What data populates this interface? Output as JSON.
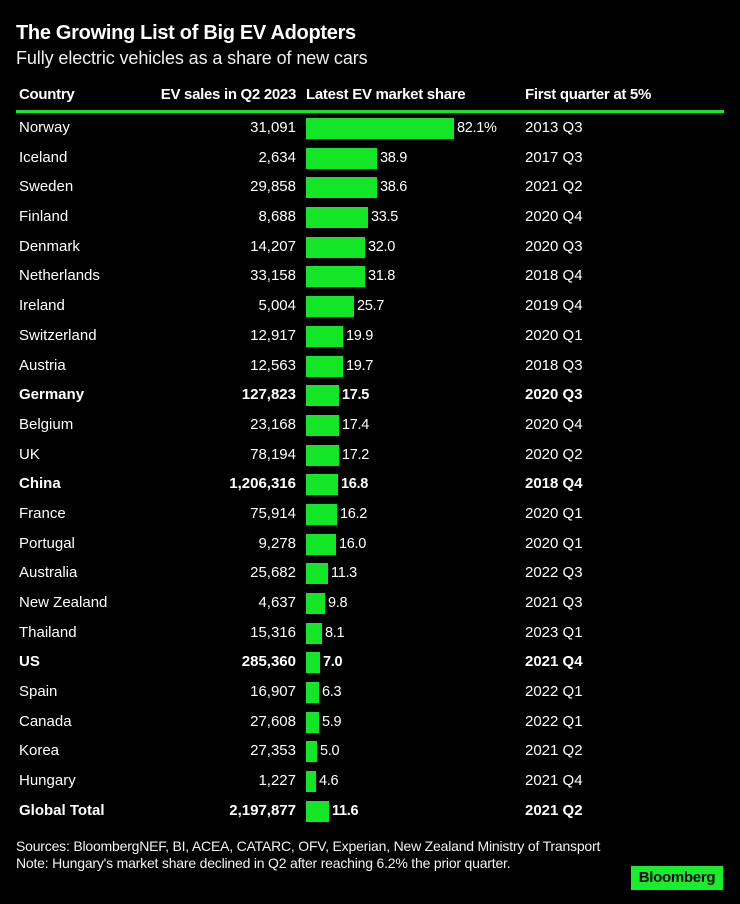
{
  "title": "The Growing List of Big EV Adopters",
  "subtitle": "Fully electric vehicles as a share of new cars",
  "columns": {
    "country": "Country",
    "sales": "EV sales in Q2 2023",
    "share": "Latest EV market share",
    "first": "First quarter at 5%"
  },
  "colors": {
    "accent": "#13e626",
    "background": "#000000",
    "text": "#ffffff"
  },
  "rows": [
    {
      "country": "Norway",
      "sales": "31,091",
      "share": 82.1,
      "share_label": "82.1%",
      "first": "2013 Q3",
      "bold": false
    },
    {
      "country": "Iceland",
      "sales": "2,634",
      "share": 38.9,
      "share_label": "38.9",
      "first": "2017 Q3",
      "bold": false
    },
    {
      "country": "Sweden",
      "sales": "29,858",
      "share": 38.6,
      "share_label": "38.6",
      "first": "2021 Q2",
      "bold": false
    },
    {
      "country": "Finland",
      "sales": "8,688",
      "share": 33.5,
      "share_label": "33.5",
      "first": "2020 Q4",
      "bold": false
    },
    {
      "country": "Denmark",
      "sales": "14,207",
      "share": 32.0,
      "share_label": "32.0",
      "first": "2020 Q3",
      "bold": false
    },
    {
      "country": "Netherlands",
      "sales": "33,158",
      "share": 31.8,
      "share_label": "31.8",
      "first": "2018 Q4",
      "bold": false
    },
    {
      "country": "Ireland",
      "sales": "5,004",
      "share": 25.7,
      "share_label": "25.7",
      "first": "2019 Q4",
      "bold": false
    },
    {
      "country": "Switzerland",
      "sales": "12,917",
      "share": 19.9,
      "share_label": "19.9",
      "first": "2020 Q1",
      "bold": false
    },
    {
      "country": "Austria",
      "sales": "12,563",
      "share": 19.7,
      "share_label": "19.7",
      "first": "2018 Q3",
      "bold": false
    },
    {
      "country": "Germany",
      "sales": "127,823",
      "share": 17.5,
      "share_label": "17.5",
      "first": "2020 Q3",
      "bold": true
    },
    {
      "country": "Belgium",
      "sales": "23,168",
      "share": 17.4,
      "share_label": "17.4",
      "first": "2020 Q4",
      "bold": false
    },
    {
      "country": "UK",
      "sales": "78,194",
      "share": 17.2,
      "share_label": "17.2",
      "first": "2020 Q2",
      "bold": false
    },
    {
      "country": "China",
      "sales": "1,206,316",
      "share": 16.8,
      "share_label": "16.8",
      "first": "2018 Q4",
      "bold": true
    },
    {
      "country": "France",
      "sales": "75,914",
      "share": 16.2,
      "share_label": "16.2",
      "first": "2020 Q1",
      "bold": false
    },
    {
      "country": "Portugal",
      "sales": "9,278",
      "share": 16.0,
      "share_label": "16.0",
      "first": "2020 Q1",
      "bold": false
    },
    {
      "country": "Australia",
      "sales": "25,682",
      "share": 11.3,
      "share_label": "11.3",
      "first": "2022 Q3",
      "bold": false
    },
    {
      "country": "New Zealand",
      "sales": "4,637",
      "share": 9.8,
      "share_label": "9.8",
      "first": "2021 Q3",
      "bold": false
    },
    {
      "country": "Thailand",
      "sales": "15,316",
      "share": 8.1,
      "share_label": "8.1",
      "first": "2023 Q1",
      "bold": false
    },
    {
      "country": "US",
      "sales": "285,360",
      "share": 7.0,
      "share_label": "7.0",
      "first": "2021 Q4",
      "bold": true
    },
    {
      "country": "Spain",
      "sales": "16,907",
      "share": 6.3,
      "share_label": "6.3",
      "first": "2022 Q1",
      "bold": false
    },
    {
      "country": "Canada",
      "sales": "27,608",
      "share": 5.9,
      "share_label": "5.9",
      "first": "2022 Q1",
      "bold": false
    },
    {
      "country": "Korea",
      "sales": "27,353",
      "share": 5.0,
      "share_label": "5.0",
      "first": "2021 Q2",
      "bold": false
    },
    {
      "country": "Hungary",
      "sales": "1,227",
      "share": 4.6,
      "share_label": "4.6",
      "first": "2021 Q4",
      "bold": false
    },
    {
      "country": "Global Total",
      "sales": "2,197,877",
      "share": 11.6,
      "share_label": "11.6",
      "first": "2021 Q2",
      "bold": true
    }
  ],
  "footer": {
    "sources": "Sources: BloombergNEF, BI, ACEA, CATARC, OFV, Experian, New Zealand Ministry of Transport",
    "note": "Note: Hungary's market share declined in Q2 after reaching 6.2% the prior quarter."
  },
  "brand": "Bloomberg",
  "chart_data": {
    "type": "table",
    "title": "The Growing List of Big EV Adopters",
    "subtitle": "Fully electric vehicles as a share of new cars",
    "columns": [
      "Country",
      "EV sales in Q2 2023",
      "Latest EV market share",
      "First quarter at 5%"
    ],
    "categories": [
      "Norway",
      "Iceland",
      "Sweden",
      "Finland",
      "Denmark",
      "Netherlands",
      "Ireland",
      "Switzerland",
      "Austria",
      "Germany",
      "Belgium",
      "UK",
      "China",
      "France",
      "Portugal",
      "Australia",
      "New Zealand",
      "Thailand",
      "US",
      "Spain",
      "Canada",
      "Korea",
      "Hungary",
      "Global Total"
    ],
    "series": [
      {
        "name": "EV sales in Q2 2023",
        "values": [
          31091,
          2634,
          29858,
          8688,
          14207,
          33158,
          5004,
          12917,
          12563,
          127823,
          23168,
          78194,
          1206316,
          75914,
          9278,
          25682,
          4637,
          15316,
          285360,
          16907,
          27608,
          27353,
          1227,
          2197877
        ]
      },
      {
        "name": "Latest EV market share (%)",
        "type": "bar",
        "values": [
          82.1,
          38.9,
          38.6,
          33.5,
          32.0,
          31.8,
          25.7,
          19.9,
          19.7,
          17.5,
          17.4,
          17.2,
          16.8,
          16.2,
          16.0,
          11.3,
          9.8,
          8.1,
          7.0,
          6.3,
          5.9,
          5.0,
          4.6,
          11.6
        ]
      },
      {
        "name": "First quarter at 5%",
        "values": [
          "2013 Q3",
          "2017 Q3",
          "2021 Q2",
          "2020 Q4",
          "2020 Q3",
          "2018 Q4",
          "2019 Q4",
          "2020 Q1",
          "2018 Q3",
          "2020 Q3",
          "2020 Q4",
          "2020 Q2",
          "2018 Q4",
          "2020 Q1",
          "2020 Q1",
          "2022 Q3",
          "2021 Q3",
          "2023 Q1",
          "2021 Q4",
          "2022 Q1",
          "2022 Q1",
          "2021 Q2",
          "2021 Q4",
          "2021 Q2"
        ]
      }
    ],
    "highlighted_rows": [
      "Germany",
      "China",
      "US",
      "Global Total"
    ],
    "notes": "Sources: BloombergNEF, BI, ACEA, CATARC, OFV, Experian, New Zealand Ministry of Transport. Note: Hungary's market share declined in Q2 after reaching 6.2% the prior quarter."
  }
}
